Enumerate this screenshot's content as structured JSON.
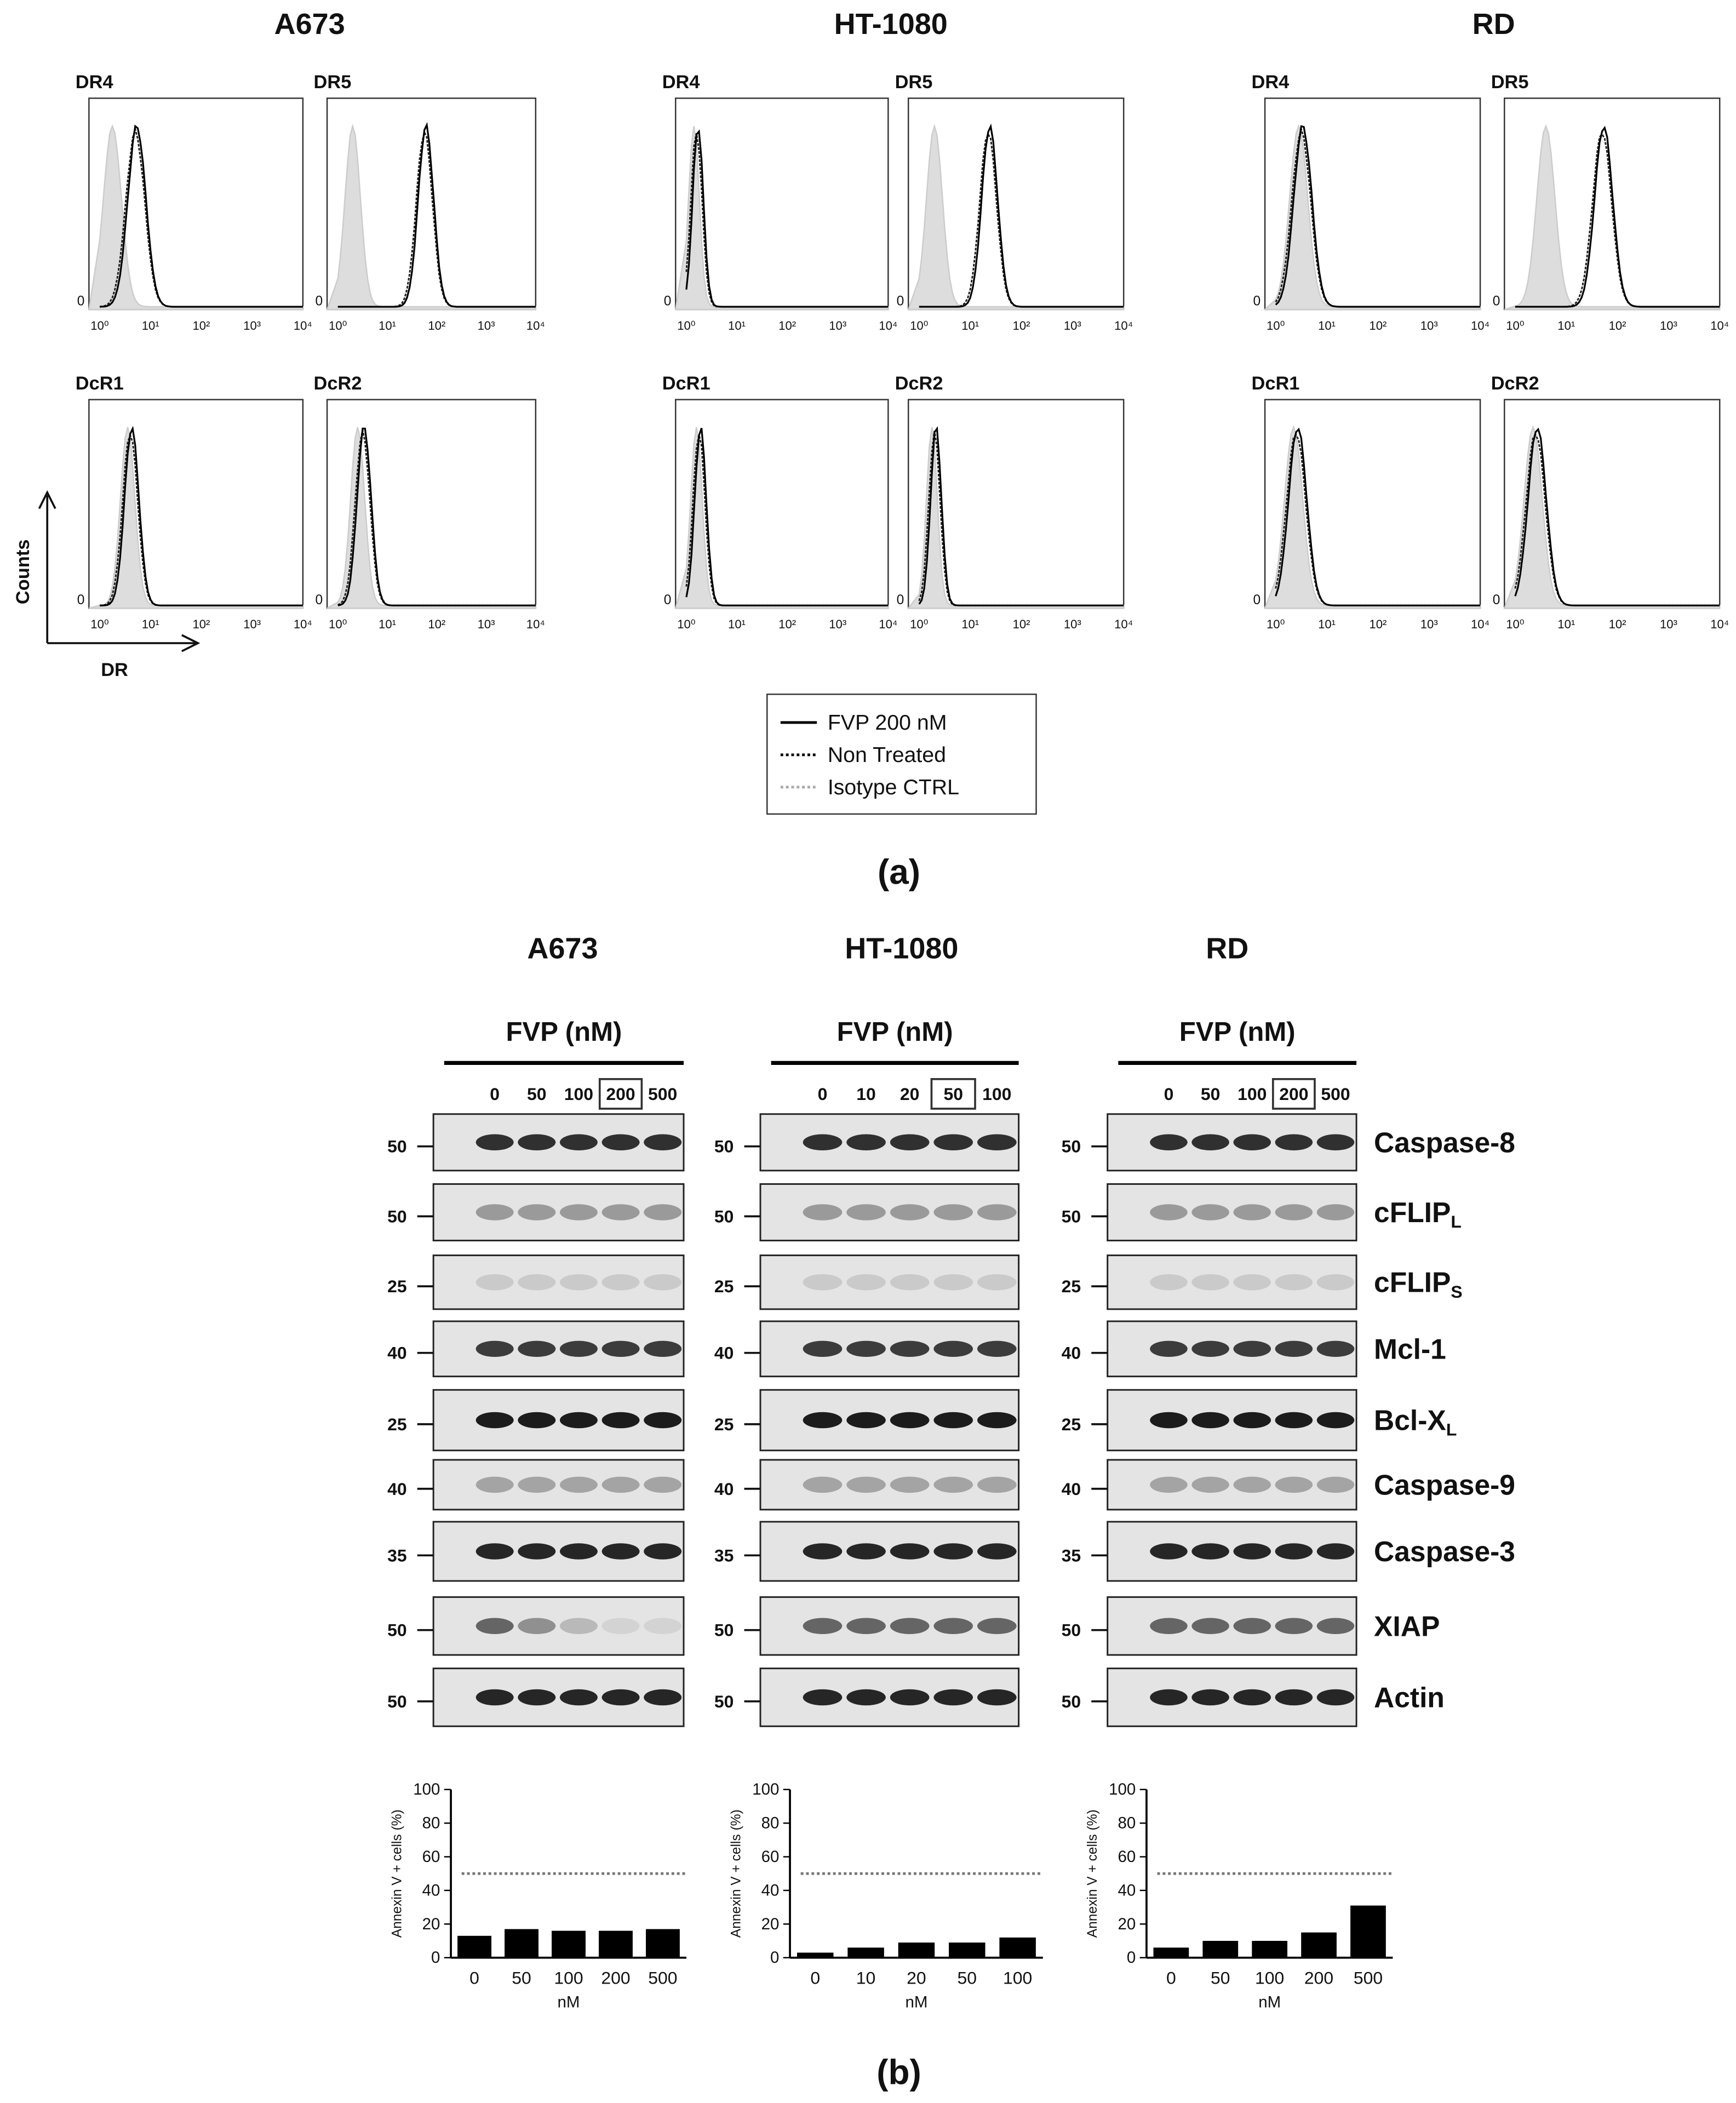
{
  "panel_a": {
    "cell_lines": [
      {
        "name": "A673",
        "plots": [
          "DR4",
          "DR5",
          "DcR1",
          "DcR2"
        ]
      },
      {
        "name": "HT-1080",
        "plots": [
          "DR4",
          "DR5",
          "DcR1",
          "DcR2"
        ]
      },
      {
        "name": "RD",
        "plots": [
          "DR4",
          "DR5",
          "DcR1",
          "DcR2"
        ]
      }
    ],
    "x_ticks": [
      "10⁰",
      "10¹",
      "10²",
      "10³",
      "10⁴"
    ],
    "y_tick": "0",
    "y_axis": "Counts",
    "x_axis": "DR",
    "legend": [
      "FVP 200 nM",
      "Non Treated",
      "Isotype CTRL"
    ],
    "panel_label": "(a)"
  },
  "panel_b": {
    "cell_lines": [
      {
        "name": "A673",
        "treatment": "FVP (nM)",
        "lanes": [
          "0",
          "50",
          "100",
          "200",
          "500"
        ],
        "boxed_lane": 3,
        "markers": [
          "50",
          "50",
          "25",
          "40",
          "25",
          "40",
          "35",
          "50",
          "50"
        ]
      },
      {
        "name": "HT-1080",
        "treatment": "FVP (nM)",
        "lanes": [
          "0",
          "10",
          "20",
          "50",
          "100"
        ],
        "boxed_lane": 3,
        "markers": [
          "50",
          "50",
          "25",
          "40",
          "25",
          "40",
          "35",
          "50",
          "50"
        ]
      },
      {
        "name": "RD",
        "treatment": "FVP (nM)",
        "lanes": [
          "0",
          "50",
          "100",
          "200",
          "500"
        ],
        "boxed_lane": 3,
        "markers": [
          "50",
          "50",
          "25",
          "40",
          "25",
          "40",
          "35",
          "50",
          "50"
        ]
      }
    ],
    "proteins": [
      {
        "text": "Caspase-8"
      },
      {
        "text": "cFLIP",
        "sub": "L"
      },
      {
        "text": "cFLIP",
        "sub": "S"
      },
      {
        "text": "Mcl-1"
      },
      {
        "text": "Bcl-X",
        "sub": "L"
      },
      {
        "text": "Caspase-9"
      },
      {
        "text": "Caspase-3"
      },
      {
        "text": "XIAP"
      },
      {
        "text": "Actin"
      }
    ],
    "panel_label": "(b)"
  },
  "chart_data": [
    {
      "type": "bar",
      "y_label": "Annexin V + cells (%)",
      "x_label": "nM",
      "categories": [
        "0",
        "50",
        "100",
        "200",
        "500"
      ],
      "values": [
        13,
        17,
        16,
        16,
        17
      ],
      "color": "#000000",
      "ylim": [
        0,
        100
      ],
      "yticks": [
        0,
        20,
        40,
        60,
        80,
        100
      ],
      "reference_line": 50
    },
    {
      "type": "bar",
      "y_label": "Annexin V + cells (%)",
      "x_label": "nM",
      "categories": [
        "0",
        "10",
        "20",
        "50",
        "100"
      ],
      "values": [
        3,
        6,
        9,
        9,
        12
      ],
      "color": "#000000",
      "ylim": [
        0,
        100
      ],
      "yticks": [
        0,
        20,
        40,
        60,
        80,
        100
      ],
      "reference_line": 50
    },
    {
      "type": "bar",
      "y_label": "Annexin V + cells (%)",
      "x_label": "nM",
      "categories": [
        "0",
        "50",
        "100",
        "200",
        "500"
      ],
      "values": [
        6,
        10,
        10,
        15,
        31
      ],
      "color": "#000000",
      "ylim": [
        0,
        100
      ],
      "yticks": [
        0,
        20,
        40,
        60,
        80,
        100
      ],
      "reference_line": 50
    }
  ]
}
